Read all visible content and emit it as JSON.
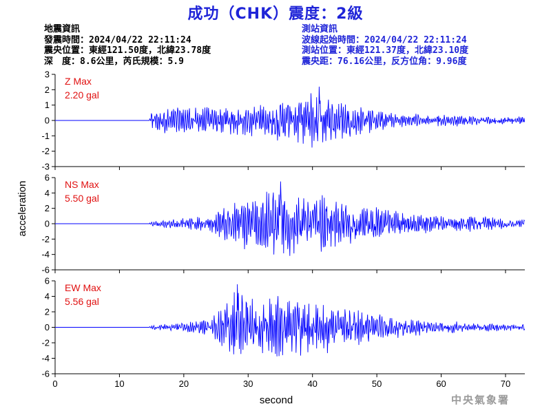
{
  "title": "成功（CHK）震度：2級",
  "event_info": {
    "heading": "地震資訊",
    "origin_time": "發震時間：2024/04/22 22:11:24",
    "epicenter": "震央位置：東經121.50度，北緯23.78度",
    "depth_magnitude": "深　度：8.6公里，芮氏規模：5.9"
  },
  "station_info": {
    "heading": "測站資訊",
    "wave_start_time": "波線起始時間：2024/04/22 22:11:24",
    "station_location": "測站位置：東經121.37度，北緯23.10度",
    "distance_azimuth": "震央距：76.16公里，反方位角：9.96度"
  },
  "footer_logo": "中央氣象署",
  "colors": {
    "title": "#1f24d8",
    "trace": "#0000ff",
    "max_label": "#e01010",
    "station_text": "#1f24d8"
  },
  "chart_data": {
    "type": "line",
    "xlabel": "second",
    "ylabel": "acceleration",
    "xlim": [
      0,
      73
    ],
    "x_ticks": [
      0,
      10,
      20,
      30,
      40,
      50,
      60,
      70
    ],
    "panels": [
      {
        "component": "Z",
        "max_label": "Z Max",
        "max_value_label": "2.20 gal",
        "ylim": [
          -3,
          3
        ],
        "y_ticks": [
          3,
          2,
          1,
          0,
          -1,
          -2,
          -3
        ],
        "onset_s": 14.7,
        "peak_time_s": 41,
        "peak_abs": 2.2,
        "envelope": [
          [
            0,
            0
          ],
          [
            14.5,
            0
          ],
          [
            15,
            0.7
          ],
          [
            16,
            0.8
          ],
          [
            19,
            1.0
          ],
          [
            22,
            0.9
          ],
          [
            27,
            0.9
          ],
          [
            32,
            1.2
          ],
          [
            37,
            1.5
          ],
          [
            41,
            2.1
          ],
          [
            44,
            1.3
          ],
          [
            48,
            1.0
          ],
          [
            52,
            0.6
          ],
          [
            58,
            0.45
          ],
          [
            65,
            0.35
          ],
          [
            73,
            0.3
          ]
        ]
      },
      {
        "component": "NS",
        "max_label": "NS Max",
        "max_value_label": "5.50 gal",
        "ylim": [
          -6,
          6
        ],
        "y_ticks": [
          6,
          4,
          2,
          0,
          -2,
          -4,
          -6
        ],
        "onset_s": 14.7,
        "peak_time_s": 35,
        "peak_abs": 5.5,
        "envelope": [
          [
            0,
            0
          ],
          [
            14.5,
            0
          ],
          [
            15,
            0.3
          ],
          [
            18,
            0.6
          ],
          [
            21,
            0.8
          ],
          [
            24,
            1.1
          ],
          [
            27,
            2.5
          ],
          [
            30,
            3.8
          ],
          [
            33,
            4.2
          ],
          [
            35,
            5.3
          ],
          [
            38,
            3.8
          ],
          [
            41,
            4.0
          ],
          [
            44,
            3.6
          ],
          [
            47,
            2.6
          ],
          [
            51,
            2.0
          ],
          [
            55,
            1.5
          ],
          [
            60,
            1.2
          ],
          [
            66,
            1.0
          ],
          [
            73,
            0.6
          ]
        ]
      },
      {
        "component": "EW",
        "max_label": "EW Max",
        "max_value_label": "5.56 gal",
        "ylim": [
          -6,
          6
        ],
        "y_ticks": [
          6,
          4,
          2,
          0,
          -2,
          -4,
          -6
        ],
        "onset_s": 14.7,
        "peak_time_s": 28.3,
        "peak_abs": 5.56,
        "envelope": [
          [
            0,
            0
          ],
          [
            14.5,
            0
          ],
          [
            15,
            0.3
          ],
          [
            18,
            0.5
          ],
          [
            21,
            0.7
          ],
          [
            24,
            1.2
          ],
          [
            26,
            2.6
          ],
          [
            28,
            5.2
          ],
          [
            30,
            4.0
          ],
          [
            33,
            4.3
          ],
          [
            36,
            4.0
          ],
          [
            39,
            3.8
          ],
          [
            42,
            3.5
          ],
          [
            45,
            2.8
          ],
          [
            48,
            2.3
          ],
          [
            52,
            1.6
          ],
          [
            58,
            1.0
          ],
          [
            65,
            0.6
          ],
          [
            73,
            0.4
          ]
        ]
      }
    ]
  }
}
